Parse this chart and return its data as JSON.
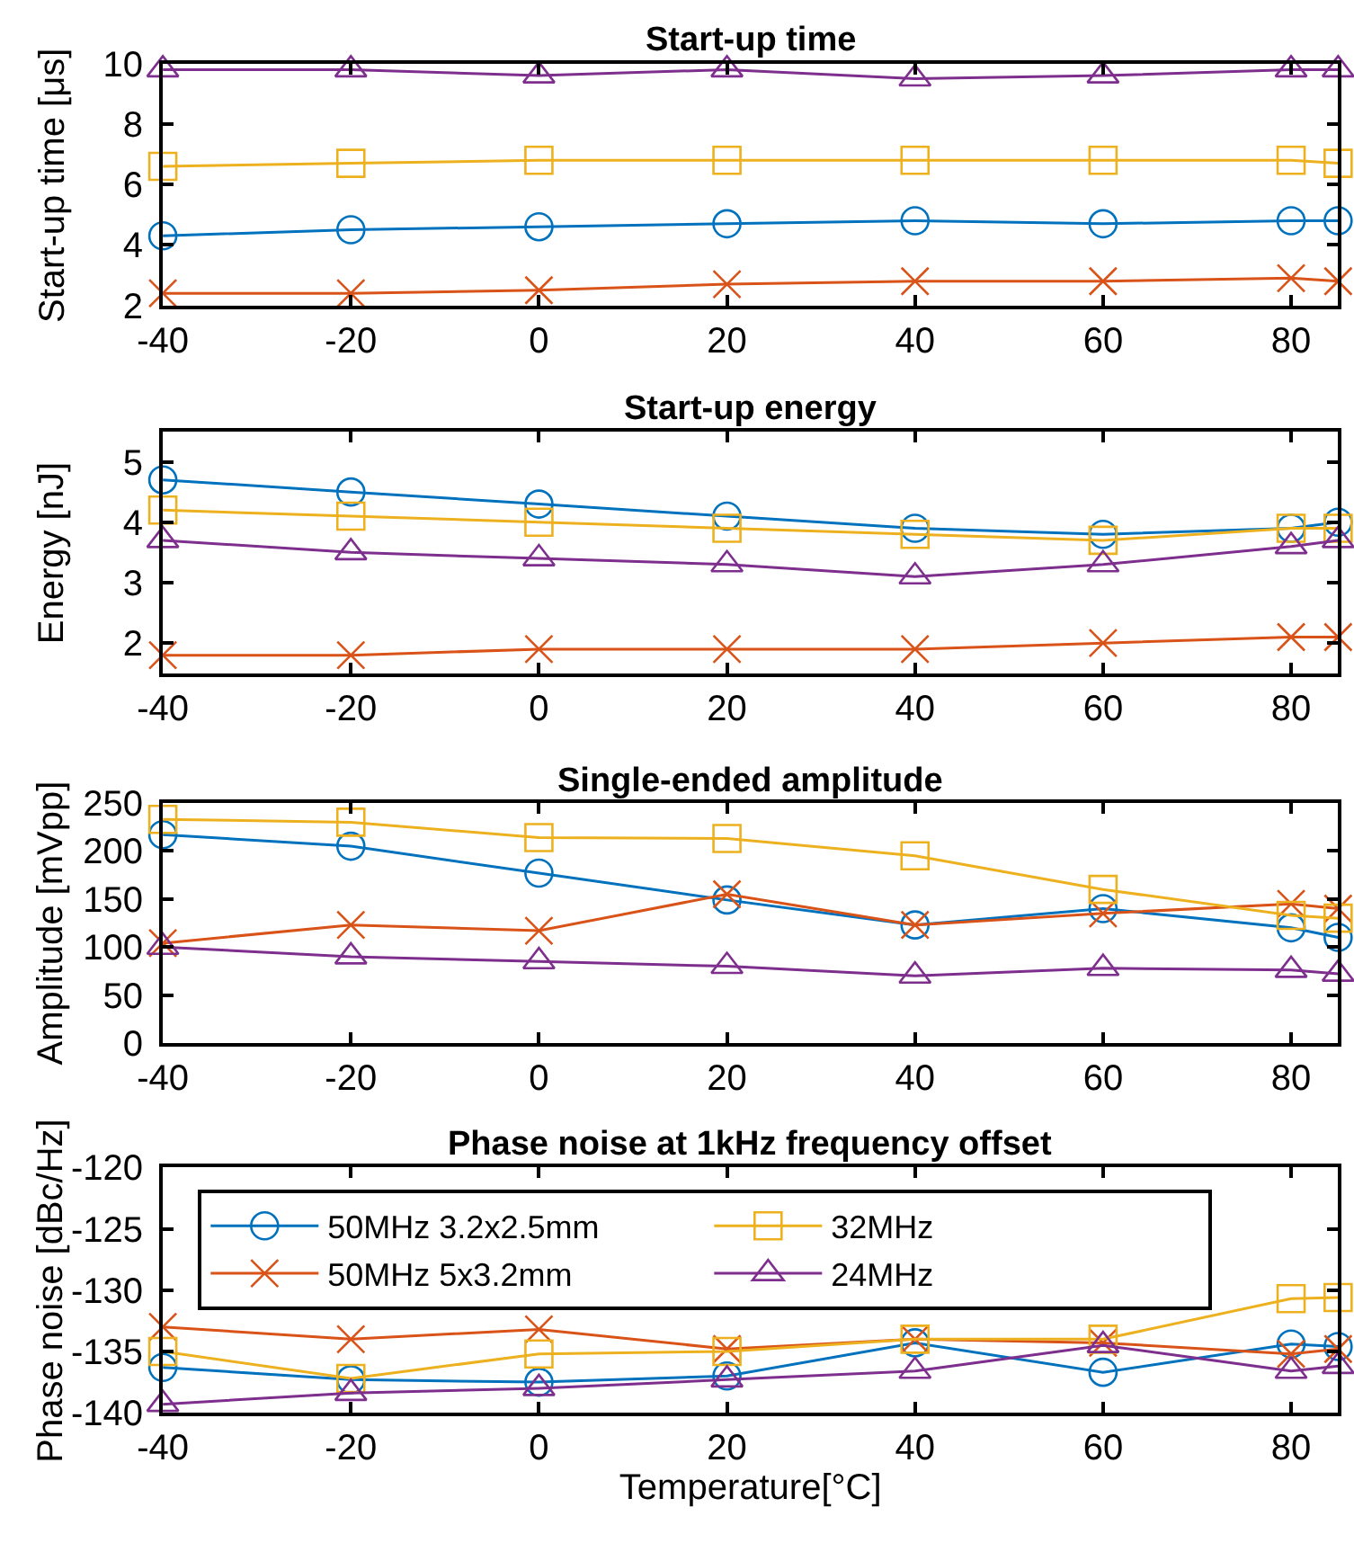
{
  "chart_data": [
    {
      "type": "line",
      "title": "Start-up time",
      "ylabel": "Start-up time [μs]",
      "x": [
        -40,
        -20,
        0,
        20,
        40,
        60,
        80,
        85
      ],
      "xlim": [
        -40,
        85
      ],
      "xticks": [
        -40,
        -20,
        0,
        20,
        40,
        60,
        80
      ],
      "ylim": [
        2,
        10
      ],
      "yticks": [
        2,
        4,
        6,
        8,
        10
      ],
      "series": [
        {
          "color": "#0072bd",
          "marker": "circle",
          "values": [
            4.3,
            4.5,
            4.6,
            4.7,
            4.8,
            4.7,
            4.8,
            4.8
          ]
        },
        {
          "color": "#d95319",
          "marker": "cross",
          "values": [
            2.4,
            2.4,
            2.5,
            2.7,
            2.8,
            2.8,
            2.9,
            2.8
          ]
        },
        {
          "color": "#edb120",
          "marker": "square",
          "values": [
            6.6,
            6.7,
            6.8,
            6.8,
            6.8,
            6.8,
            6.8,
            6.7
          ]
        },
        {
          "color": "#7e2f8e",
          "marker": "triangle",
          "values": [
            9.8,
            9.8,
            9.6,
            9.8,
            9.5,
            9.6,
            9.8,
            9.8
          ]
        }
      ]
    },
    {
      "type": "line",
      "title": "Start-up energy",
      "ylabel": "Energy [nJ]",
      "x": [
        -40,
        -20,
        0,
        20,
        40,
        60,
        80,
        85
      ],
      "xlim": [
        -40,
        85
      ],
      "xticks": [
        -40,
        -20,
        0,
        20,
        40,
        60,
        80
      ],
      "ylim": [
        1.5,
        5.5
      ],
      "yticks": [
        2,
        3,
        4,
        5
      ],
      "series": [
        {
          "color": "#0072bd",
          "marker": "circle",
          "values": [
            4.7,
            4.5,
            4.3,
            4.1,
            3.9,
            3.8,
            3.9,
            4.0
          ]
        },
        {
          "color": "#d95319",
          "marker": "cross",
          "values": [
            1.8,
            1.8,
            1.9,
            1.9,
            1.9,
            2.0,
            2.1,
            2.1
          ]
        },
        {
          "color": "#edb120",
          "marker": "square",
          "values": [
            4.2,
            4.1,
            4.0,
            3.9,
            3.8,
            3.7,
            3.9,
            3.9
          ]
        },
        {
          "color": "#7e2f8e",
          "marker": "triangle",
          "values": [
            3.7,
            3.5,
            3.4,
            3.3,
            3.1,
            3.3,
            3.6,
            3.7
          ]
        }
      ]
    },
    {
      "type": "line",
      "title": "Single-ended amplitude",
      "ylabel": "Amplitude [mVpp]",
      "x": [
        -40,
        -20,
        0,
        20,
        40,
        60,
        80,
        85
      ],
      "xlim": [
        -40,
        85
      ],
      "xticks": [
        -40,
        -20,
        0,
        20,
        40,
        60,
        80
      ],
      "ylim": [
        0,
        250
      ],
      "yticks": [
        0,
        50,
        100,
        150,
        200,
        250
      ],
      "series": [
        {
          "color": "#0072bd",
          "marker": "circle",
          "values": [
            217,
            205,
            177,
            149,
            123,
            140,
            120,
            110
          ]
        },
        {
          "color": "#d95319",
          "marker": "cross",
          "values": [
            104,
            123,
            117,
            155,
            123,
            135,
            145,
            140
          ]
        },
        {
          "color": "#edb120",
          "marker": "square",
          "values": [
            233,
            230,
            214,
            213,
            195,
            160,
            133,
            130
          ]
        },
        {
          "color": "#7e2f8e",
          "marker": "triangle",
          "values": [
            100,
            90,
            85,
            80,
            70,
            78,
            76,
            72
          ]
        }
      ]
    },
    {
      "type": "line",
      "title": "Phase noise at 1kHz frequency offset",
      "xlabel": "Temperature[°C]",
      "ylabel": "Phase noise [dBc/Hz]",
      "x": [
        -40,
        -20,
        0,
        20,
        40,
        60,
        80,
        85
      ],
      "xlim": [
        -40,
        85
      ],
      "xticks": [
        -40,
        -20,
        0,
        20,
        40,
        60,
        80
      ],
      "ylim": [
        -140,
        -120
      ],
      "yticks": [
        -140,
        -135,
        -130,
        -125,
        -120
      ],
      "legend": "top left",
      "series": [
        {
          "name": "50MHz 3.2x2.5mm",
          "color": "#0072bd",
          "marker": "circle",
          "values": [
            -136.3,
            -137.3,
            -137.5,
            -137,
            -134.3,
            -136.7,
            -134.4,
            -134.6
          ]
        },
        {
          "name": "50MHz 5x3.2mm",
          "color": "#d95319",
          "marker": "cross",
          "values": [
            -133,
            -134,
            -133.2,
            -134.8,
            -134,
            -134.3,
            -135.2,
            -134.8
          ]
        },
        {
          "name": "32MHz",
          "color": "#edb120",
          "marker": "square",
          "values": [
            -135,
            -137.2,
            -135.2,
            -135,
            -134,
            -134,
            -130.7,
            -130.6
          ]
        },
        {
          "name": "24MHz",
          "color": "#7e2f8e",
          "marker": "triangle",
          "values": [
            -139.3,
            -138.4,
            -138,
            -137.3,
            -136.6,
            -134.5,
            -136.6,
            -136.2
          ]
        }
      ]
    }
  ]
}
